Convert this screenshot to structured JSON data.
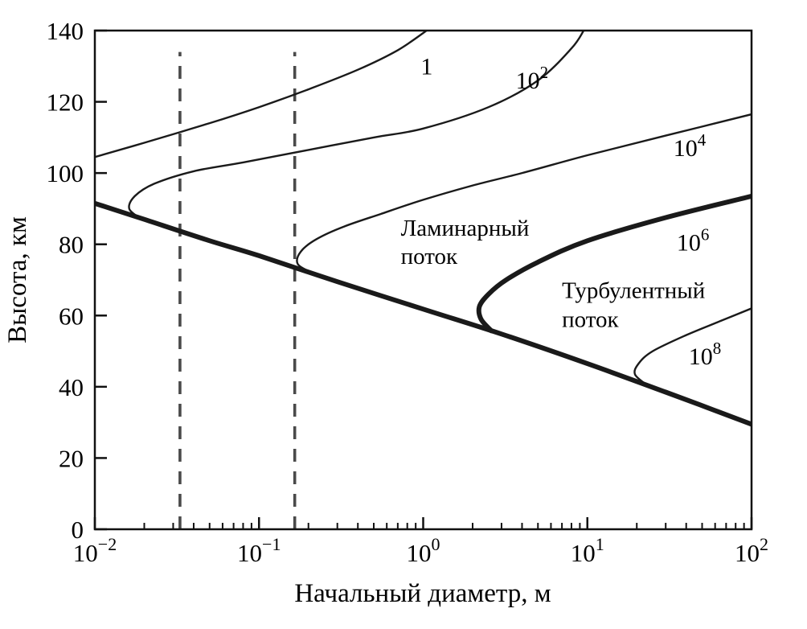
{
  "colors": {
    "curve": "#1a1a1a",
    "frame": "#111111",
    "dashed": "#4a4a4a",
    "text": "#000000",
    "background": "#ffffff"
  },
  "chart_data": {
    "type": "line",
    "title": "",
    "xlabel": "Начальный диаметр, м",
    "ylabel": "Высота, км",
    "x_scale": "log",
    "xlim": [
      0.01,
      100
    ],
    "ylim": [
      0,
      140
    ],
    "grid": false,
    "x_ticks": [
      {
        "value": 0.01,
        "base": "10",
        "exp": "−2"
      },
      {
        "value": 0.1,
        "base": "10",
        "exp": "−1"
      },
      {
        "value": 1,
        "base": "10",
        "exp": "0"
      },
      {
        "value": 10,
        "base": "10",
        "exp": "1"
      },
      {
        "value": 100,
        "base": "10",
        "exp": "2"
      }
    ],
    "x_minor_decades": [
      -2,
      -1,
      0,
      1
    ],
    "y_ticks": [
      0,
      20,
      40,
      60,
      80,
      100,
      120,
      140
    ],
    "series": [
      {
        "name": "lower-envelope",
        "style": "thick",
        "points": [
          [
            0.01,
            91.5
          ],
          [
            0.02,
            87.0
          ],
          [
            0.05,
            81.0
          ],
          [
            0.1,
            76.8
          ],
          [
            0.3,
            69.5
          ],
          [
            1,
            61.8
          ],
          [
            3,
            54.8
          ],
          [
            10,
            46.5
          ],
          [
            30,
            38.5
          ],
          [
            100,
            29.5
          ]
        ]
      },
      {
        "name": "contour-re-1",
        "style": "thin",
        "points": [
          [
            0.01,
            104.5
          ],
          [
            0.02,
            108.5
          ],
          [
            0.05,
            114.0
          ],
          [
            0.1,
            118.5
          ],
          [
            0.2,
            123.5
          ],
          [
            0.4,
            129.0
          ],
          [
            0.7,
            134.5
          ],
          [
            1.05,
            140
          ]
        ]
      },
      {
        "name": "contour-re-1e2",
        "style": "thin",
        "points": [
          [
            0.019,
            87.2
          ],
          [
            0.0162,
            90.0
          ],
          [
            0.0175,
            93.5
          ],
          [
            0.023,
            97.0
          ],
          [
            0.04,
            100.5
          ],
          [
            0.08,
            103.0
          ],
          [
            0.2,
            106.5
          ],
          [
            0.5,
            110.0
          ],
          [
            1,
            112.5
          ],
          [
            2.5,
            118.5
          ],
          [
            5,
            126.0
          ],
          [
            8,
            135.0
          ],
          [
            9.5,
            140
          ]
        ]
      },
      {
        "name": "contour-re-1e4",
        "style": "thin",
        "points": [
          [
            0.21,
            72.0
          ],
          [
            0.172,
            74.5
          ],
          [
            0.18,
            78.0
          ],
          [
            0.225,
            81.5
          ],
          [
            0.33,
            85.0
          ],
          [
            0.55,
            88.5
          ],
          [
            1,
            92.5
          ],
          [
            2,
            96.5
          ],
          [
            4,
            100.0
          ],
          [
            10,
            105.0
          ],
          [
            30,
            110.5
          ],
          [
            100,
            116.5
          ]
        ]
      },
      {
        "name": "contour-re-1e6-upper",
        "style": "thick",
        "points": [
          [
            2.6,
            55.7
          ],
          [
            2.25,
            59.0
          ],
          [
            2.2,
            62.5
          ],
          [
            2.5,
            66.0
          ],
          [
            3.2,
            70.0
          ],
          [
            5,
            75.0
          ],
          [
            10,
            81.0
          ],
          [
            30,
            87.5
          ],
          [
            100,
            93.5
          ]
        ]
      },
      {
        "name": "contour-re-1e8",
        "style": "thin",
        "points": [
          [
            23,
            40.5
          ],
          [
            19.5,
            43.5
          ],
          [
            20.5,
            46.5
          ],
          [
            25,
            50.0
          ],
          [
            40,
            54.5
          ],
          [
            65,
            58.5
          ],
          [
            100,
            62.0
          ]
        ]
      }
    ],
    "contour_labels": [
      {
        "base": "1",
        "exp": "",
        "x": 1.05,
        "y": 130
      },
      {
        "base": "10",
        "exp": "2",
        "x": 4.6,
        "y": 126
      },
      {
        "base": "10",
        "exp": "4",
        "x": 42,
        "y": 107
      },
      {
        "base": "10",
        "exp": "6",
        "x": 44,
        "y": 80.5
      },
      {
        "base": "10",
        "exp": "8",
        "x": 52,
        "y": 48.5
      }
    ],
    "region_labels": [
      {
        "name": "laminar-flow-label",
        "lines": [
          "Ламинарный",
          "поток"
        ],
        "x": 0.73,
        "y_top": 84.5,
        "line_step_km": 8.0
      },
      {
        "name": "turbulent-flow-label",
        "lines": [
          "Турбулентный",
          "поток"
        ],
        "x": 7.0,
        "y_top": 67.0,
        "line_step_km": 8.2
      }
    ],
    "dashed_vlines": {
      "values": [
        0.033,
        0.165
      ],
      "y_from": 0,
      "y_to": 134
    }
  }
}
